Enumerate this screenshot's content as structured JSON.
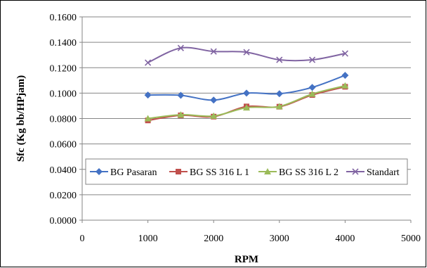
{
  "chart_data": {
    "type": "line",
    "title": "",
    "xlabel": "RPM",
    "ylabel": "Sfc (Kg bb/HPjam)",
    "xlim": [
      0,
      5000
    ],
    "ylim": [
      0,
      0.16
    ],
    "x_ticks": [
      "0",
      "1000",
      "2000",
      "3000",
      "4000",
      "5000"
    ],
    "y_ticks": [
      "0.0000",
      "0.0200",
      "0.0400",
      "0.0600",
      "0.0800",
      "0.1000",
      "0.1200",
      "0.1400",
      "0.1600"
    ],
    "grid": "horizontal",
    "legend_position": "inside-lower",
    "x": [
      1000,
      1500,
      2000,
      2500,
      3000,
      3500,
      4000
    ],
    "series": [
      {
        "name": "BG Pasaran",
        "color": "#4472C4",
        "marker": "diamond",
        "values": [
          0.0985,
          0.0983,
          0.0945,
          0.1,
          0.0995,
          0.1045,
          0.114
        ]
      },
      {
        "name": "BG SS 316 L 1",
        "color": "#C0504D",
        "marker": "square",
        "values": [
          0.0785,
          0.0825,
          0.0815,
          0.0895,
          0.0893,
          0.0985,
          0.105
        ]
      },
      {
        "name": "BG SS 316 L 2",
        "color": "#9BBB59",
        "marker": "triangle",
        "values": [
          0.08,
          0.083,
          0.082,
          0.0885,
          0.0895,
          0.0993,
          0.1058
        ]
      },
      {
        "name": "Standart",
        "color": "#8064A2",
        "marker": "x",
        "values": [
          0.124,
          0.1355,
          0.1328,
          0.1322,
          0.1262,
          0.1262,
          0.1312
        ]
      }
    ]
  }
}
